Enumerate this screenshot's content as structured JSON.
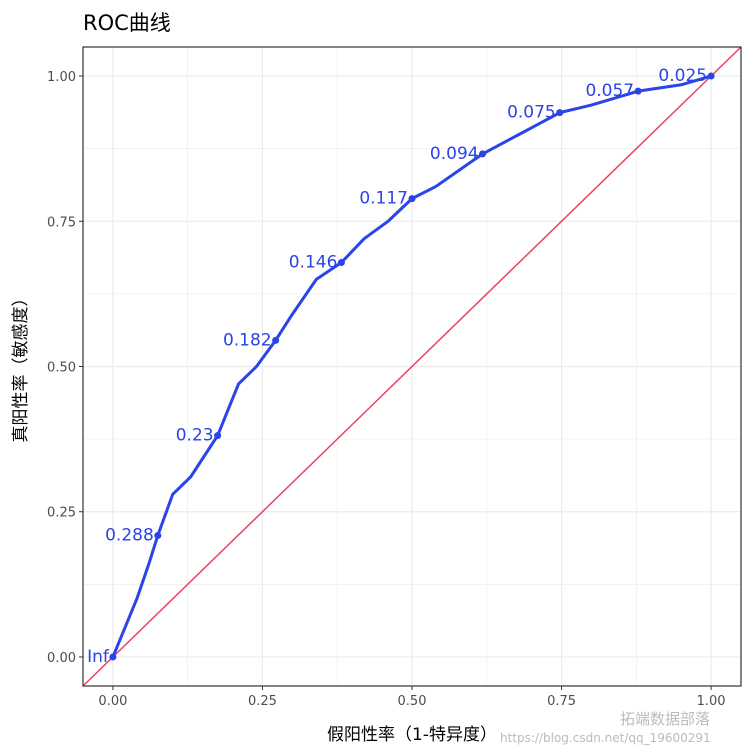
{
  "chart_data": {
    "type": "line",
    "title": "ROC曲线",
    "xlabel": "假阳性率（1-特异度）",
    "ylabel": "真阳性率（敏感度）",
    "xlim": [
      -0.05,
      1.05
    ],
    "ylim": [
      -0.05,
      1.05
    ],
    "xticks": [
      "0.00",
      "0.25",
      "0.50",
      "0.75",
      "1.00"
    ],
    "yticks": [
      "0.00",
      "0.25",
      "0.50",
      "0.75",
      "1.00"
    ],
    "grid": true,
    "curve_color": "#2a44e8",
    "reference_color": "#e8445f",
    "roc_curve": {
      "x": [
        0,
        0.02,
        0.04,
        0.06,
        0.075,
        0.1,
        0.13,
        0.175,
        0.21,
        0.24,
        0.272,
        0.3,
        0.34,
        0.382,
        0.42,
        0.46,
        0.5,
        0.54,
        0.618,
        0.68,
        0.747,
        0.8,
        0.878,
        0.95,
        1
      ],
      "y": [
        0,
        0.05,
        0.1,
        0.16,
        0.209,
        0.28,
        0.31,
        0.381,
        0.47,
        0.5,
        0.545,
        0.59,
        0.65,
        0.679,
        0.72,
        0.75,
        0.789,
        0.81,
        0.866,
        0.9,
        0.937,
        0.95,
        0.974,
        0.985,
        1
      ]
    },
    "threshold_points": [
      {
        "label": "Inf",
        "x": 0,
        "y": 0
      },
      {
        "label": "0.288",
        "x": 0.075,
        "y": 0.209
      },
      {
        "label": "0.23",
        "x": 0.175,
        "y": 0.381
      },
      {
        "label": "0.182",
        "x": 0.272,
        "y": 0.545
      },
      {
        "label": "0.146",
        "x": 0.382,
        "y": 0.679
      },
      {
        "label": "0.117",
        "x": 0.5,
        "y": 0.789
      },
      {
        "label": "0.094",
        "x": 0.618,
        "y": 0.866
      },
      {
        "label": "0.075",
        "x": 0.747,
        "y": 0.937
      },
      {
        "label": "0.057",
        "x": 0.878,
        "y": 0.974
      },
      {
        "label": "0.025",
        "x": 1,
        "y": 1
      }
    ],
    "reference_line": {
      "slope": 1,
      "intercept": 0
    }
  },
  "watermark": {
    "brand": "拓端数据部落",
    "url": "https://blog.csdn.net/qq_19600291"
  }
}
